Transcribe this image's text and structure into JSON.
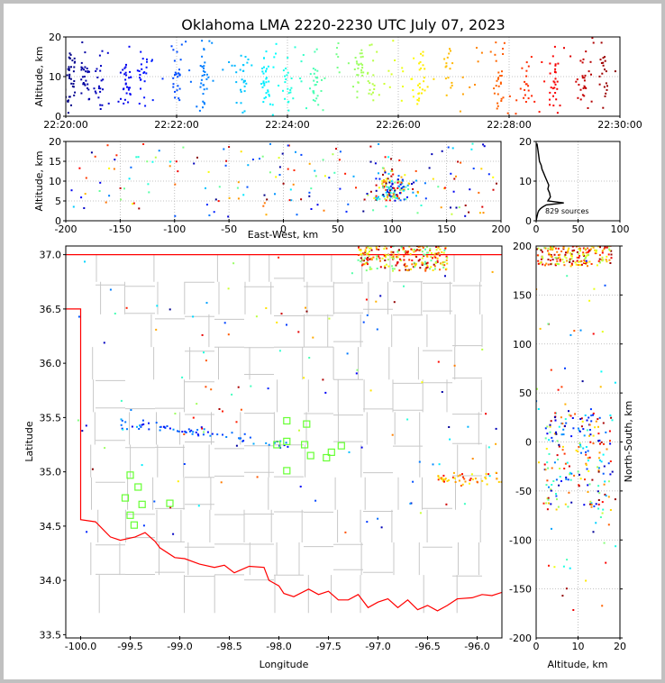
{
  "chart_data": [
    {
      "id": "time_height",
      "type": "scatter",
      "title": "Oklahoma LMA 2220-2230 UTC July 07, 2023",
      "xlabel": "",
      "ylabel": "Altitude, km",
      "xlim": [
        "22:20:00",
        "22:30:00"
      ],
      "ylim": [
        0,
        20
      ],
      "x_ticks": [
        "22:20:00",
        "22:22:00",
        "22:24:00",
        "22:26:00",
        "22:28:00",
        "22:30:00"
      ],
      "y_ticks": [
        "0",
        "10",
        "20"
      ],
      "color_scale": "time (blue to red)",
      "grid": true
    },
    {
      "id": "east_west_height",
      "type": "scatter",
      "xlabel": "East-West, km",
      "ylabel": "Altitude, km",
      "xlim": [
        -200,
        200
      ],
      "ylim": [
        0,
        20
      ],
      "x_ticks": [
        "-200",
        "-150",
        "-100",
        "-50",
        "0",
        "50",
        "100",
        "150",
        "200"
      ],
      "y_ticks": [
        "0",
        "5",
        "10",
        "15",
        "20"
      ],
      "grid": true
    },
    {
      "id": "altitude_histogram",
      "type": "line",
      "annotation": "829 sources",
      "xlim": [
        0,
        100
      ],
      "ylim": [
        0,
        20
      ],
      "x_ticks": [
        "0",
        "50",
        "100"
      ],
      "y_ticks": [
        "0",
        "10",
        "20"
      ],
      "profile": [
        [
          1,
          19.5
        ],
        [
          2,
          18
        ],
        [
          3,
          16.5
        ],
        [
          4,
          15
        ],
        [
          6,
          14
        ],
        [
          7,
          13
        ],
        [
          9,
          12
        ],
        [
          11,
          11
        ],
        [
          13,
          10
        ],
        [
          15,
          9
        ],
        [
          14,
          8
        ],
        [
          16,
          7
        ],
        [
          17,
          6
        ],
        [
          14,
          5
        ],
        [
          33,
          4.5
        ],
        [
          12,
          4
        ],
        [
          8,
          3.5
        ],
        [
          5,
          3
        ],
        [
          3,
          2.5
        ],
        [
          2,
          2
        ],
        [
          1,
          1
        ],
        [
          0,
          0
        ]
      ]
    },
    {
      "id": "plan_view",
      "type": "scatter",
      "xlabel": "Longitude",
      "ylabel": "Latitude",
      "xlim": [
        -100.15,
        -95.75
      ],
      "ylim": [
        33.47,
        37.08
      ],
      "x_ticks": [
        "-100.0",
        "-99.5",
        "-99.0",
        "-98.5",
        "-98.0",
        "-97.5",
        "-97.0",
        "-96.5",
        "-96.0"
      ],
      "y_ticks": [
        "33.5",
        "34.0",
        "34.5",
        "35.0",
        "35.5",
        "36.0",
        "36.5",
        "37.0"
      ],
      "stations": [
        [
          -99.5,
          34.97
        ],
        [
          -99.42,
          34.86
        ],
        [
          -99.55,
          34.76
        ],
        [
          -99.38,
          34.7
        ],
        [
          -99.1,
          34.71
        ],
        [
          -99.5,
          34.6
        ],
        [
          -99.46,
          34.51
        ],
        [
          -97.92,
          35.47
        ],
        [
          -97.72,
          35.44
        ],
        [
          -97.92,
          35.28
        ],
        [
          -98.02,
          35.25
        ],
        [
          -97.74,
          35.25
        ],
        [
          -97.92,
          35.01
        ],
        [
          -97.68,
          35.15
        ],
        [
          -97.52,
          35.13
        ],
        [
          -97.47,
          35.18
        ],
        [
          -97.37,
          35.24
        ]
      ],
      "grid": true
    },
    {
      "id": "north_south_height",
      "type": "scatter",
      "xlabel": "Altitude, km",
      "ylabel": "North-South, km",
      "xlim": [
        0,
        20
      ],
      "ylim": [
        -200,
        200
      ],
      "x_ticks": [
        "0",
        "10",
        "20"
      ],
      "y_ticks": [
        "-200",
        "-150",
        "-100",
        "-50",
        "0",
        "50",
        "100",
        "150",
        "200"
      ],
      "grid": true
    }
  ]
}
